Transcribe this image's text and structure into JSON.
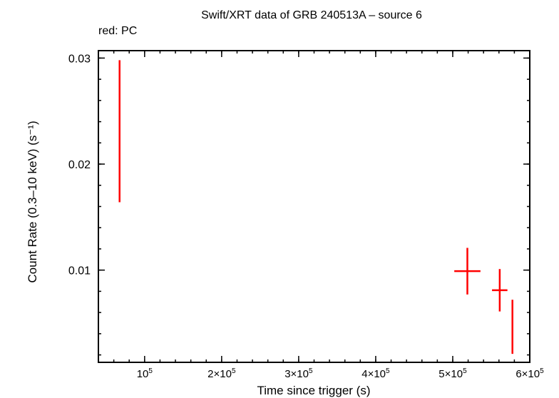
{
  "chart_data": {
    "type": "scatter",
    "title": "Swift/XRT data of GRB 240513A – source 6",
    "subtitle": "red: PC",
    "xlabel": "Time since trigger (s)",
    "ylabel": "Count Rate (0.3–10 keV) (s⁻¹)",
    "xlim": [
      40000,
      600000
    ],
    "ylim": [
      0.0013,
      0.0307
    ],
    "xticks": [
      {
        "value": 100000,
        "mant": "10",
        "exp": "5"
      },
      {
        "value": 200000,
        "mant": "2×10",
        "exp": "5"
      },
      {
        "value": 300000,
        "mant": "3×10",
        "exp": "5"
      },
      {
        "value": 400000,
        "mant": "4×10",
        "exp": "5"
      },
      {
        "value": 500000,
        "mant": "5×10",
        "exp": "5"
      },
      {
        "value": 600000,
        "mant": "6×10",
        "exp": "5"
      }
    ],
    "yticks": [
      {
        "value": 0.01,
        "label": "0.01"
      },
      {
        "value": 0.02,
        "label": "0.02"
      },
      {
        "value": 0.03,
        "label": "0.03"
      }
    ],
    "x_minor_step": 20000,
    "y_minor_step": 0.002,
    "series": [
      {
        "name": "PC",
        "color": "#ff0000",
        "points": [
          {
            "x": 67500,
            "xerr": [
              300,
              300
            ],
            "y": 0.0225,
            "yerr": [
              0.0061,
              0.0073
            ]
          },
          {
            "x": 519000,
            "xerr": [
              17000,
              17000
            ],
            "y": 0.0099,
            "yerr": [
              0.0022,
              0.0022
            ]
          },
          {
            "x": 561000,
            "xerr": [
              10000,
              10000
            ],
            "y": 0.0081,
            "yerr": [
              0.002,
              0.002
            ]
          },
          {
            "x": 577500,
            "xerr": [
              1000,
              1000
            ],
            "y": 0.0043,
            "yerr": [
              0.0022,
              0.0029
            ]
          }
        ]
      }
    ]
  }
}
